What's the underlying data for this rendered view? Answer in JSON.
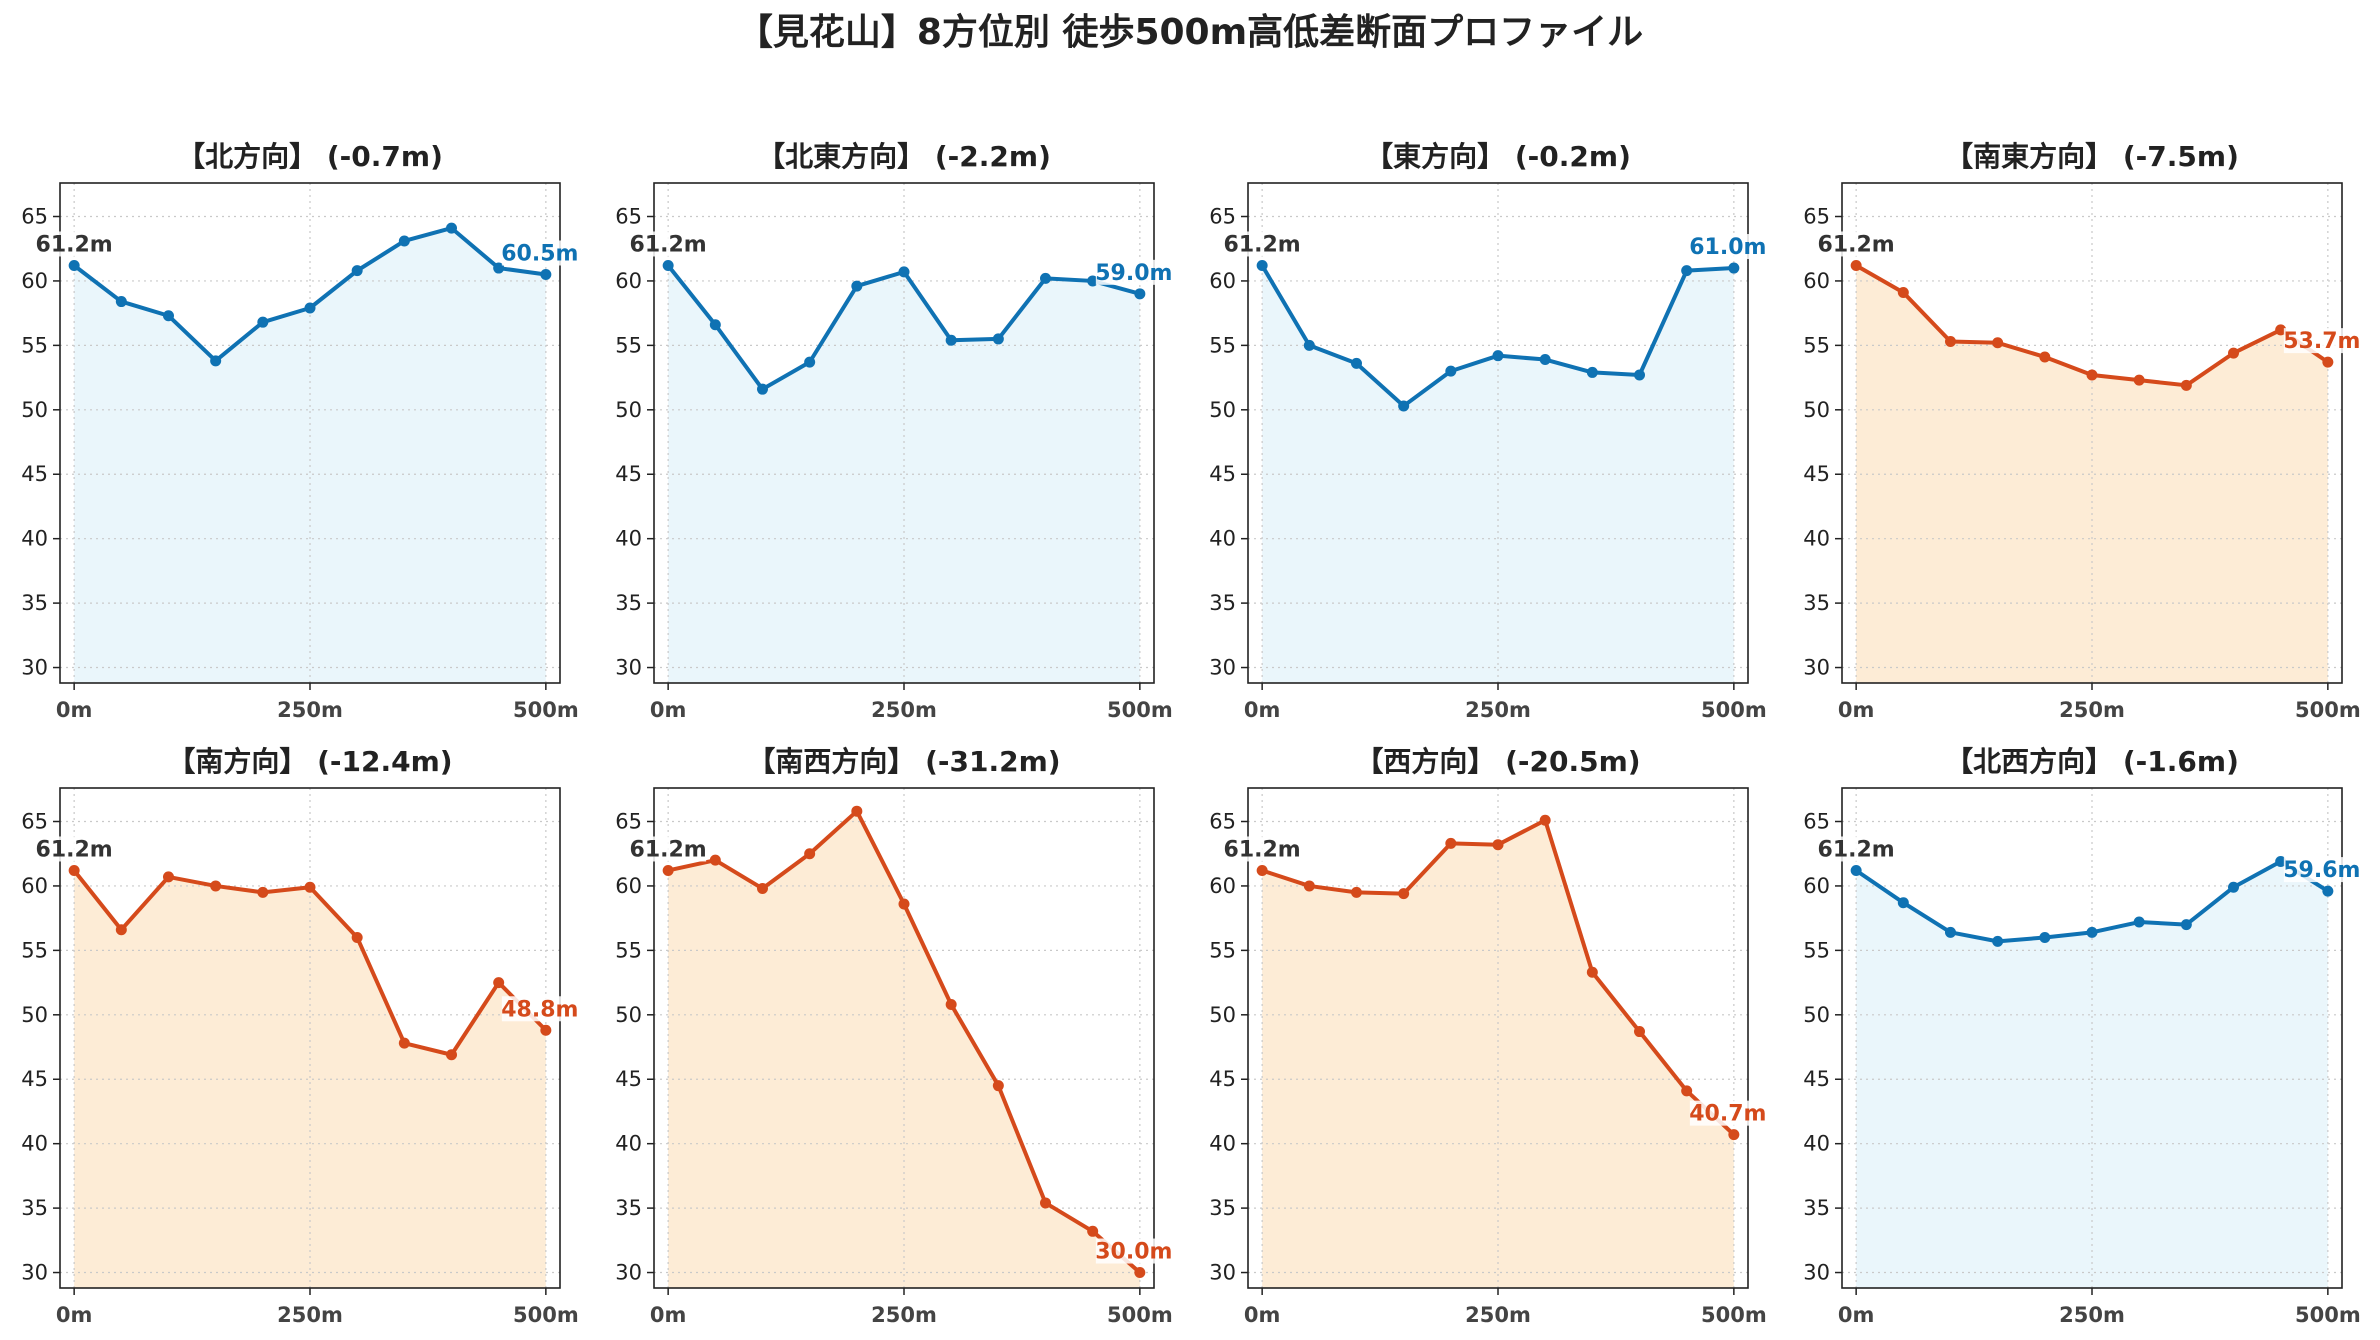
{
  "title": "【見花山】8方位別 徒歩500m高低差断面プロファイル",
  "colors": {
    "up_line": "#0f72b3",
    "up_fill": "#eaf6fb",
    "down_line": "#d54a1b",
    "down_fill": "#fdecd6",
    "grid": "#c9c9c9",
    "start_label": "#333333"
  },
  "chart_data": [
    {
      "type": "area",
      "title": "【北方向】 (-0.7m)",
      "x": [
        0,
        50,
        100,
        150,
        200,
        250,
        300,
        350,
        400,
        450,
        500
      ],
      "x_tick_labels": [
        "0m",
        "250m",
        "500m"
      ],
      "x_ticks": [
        0,
        250,
        500
      ],
      "xlim": [
        -15,
        515
      ],
      "y": [
        61.2,
        58.4,
        57.3,
        53.8,
        56.8,
        57.9,
        60.8,
        63.1,
        64.1,
        61.0,
        60.5
      ],
      "ylim": [
        28.8,
        67.6
      ],
      "y_ticks": [
        30,
        35,
        40,
        45,
        50,
        55,
        60,
        65
      ],
      "start_label": "61.2m",
      "end_label": "60.5m",
      "trend": "up",
      "grid": true
    },
    {
      "type": "area",
      "title": "【北東方向】 (-2.2m)",
      "x": [
        0,
        50,
        100,
        150,
        200,
        250,
        300,
        350,
        400,
        450,
        500
      ],
      "x_tick_labels": [
        "0m",
        "250m",
        "500m"
      ],
      "x_ticks": [
        0,
        250,
        500
      ],
      "xlim": [
        -15,
        515
      ],
      "y": [
        61.2,
        56.6,
        51.6,
        53.7,
        59.6,
        60.7,
        55.4,
        55.5,
        60.2,
        60.0,
        59.0
      ],
      "ylim": [
        28.8,
        67.6
      ],
      "y_ticks": [
        30,
        35,
        40,
        45,
        50,
        55,
        60,
        65
      ],
      "start_label": "61.2m",
      "end_label": "59.0m",
      "trend": "up",
      "grid": true
    },
    {
      "type": "area",
      "title": "【東方向】 (-0.2m)",
      "x": [
        0,
        50,
        100,
        150,
        200,
        250,
        300,
        350,
        400,
        450,
        500
      ],
      "x_tick_labels": [
        "0m",
        "250m",
        "500m"
      ],
      "x_ticks": [
        0,
        250,
        500
      ],
      "xlim": [
        -15,
        515
      ],
      "y": [
        61.2,
        55.0,
        53.6,
        50.3,
        53.0,
        54.2,
        53.9,
        52.9,
        52.7,
        60.8,
        61.0
      ],
      "ylim": [
        28.8,
        67.6
      ],
      "y_ticks": [
        30,
        35,
        40,
        45,
        50,
        55,
        60,
        65
      ],
      "start_label": "61.2m",
      "end_label": "61.0m",
      "trend": "up",
      "grid": true
    },
    {
      "type": "area",
      "title": "【南東方向】 (-7.5m)",
      "x": [
        0,
        50,
        100,
        150,
        200,
        250,
        300,
        350,
        400,
        450,
        500
      ],
      "x_tick_labels": [
        "0m",
        "250m",
        "500m"
      ],
      "x_ticks": [
        0,
        250,
        500
      ],
      "xlim": [
        -15,
        515
      ],
      "y": [
        61.2,
        59.1,
        55.3,
        55.2,
        54.1,
        52.7,
        52.3,
        51.9,
        54.4,
        56.2,
        53.7
      ],
      "ylim": [
        28.8,
        67.6
      ],
      "y_ticks": [
        30,
        35,
        40,
        45,
        50,
        55,
        60,
        65
      ],
      "start_label": "61.2m",
      "end_label": "53.7m",
      "trend": "down",
      "grid": true
    },
    {
      "type": "area",
      "title": "【南方向】 (-12.4m)",
      "x": [
        0,
        50,
        100,
        150,
        200,
        250,
        300,
        350,
        400,
        450,
        500
      ],
      "x_tick_labels": [
        "0m",
        "250m",
        "500m"
      ],
      "x_ticks": [
        0,
        250,
        500
      ],
      "xlim": [
        -15,
        515
      ],
      "y": [
        61.2,
        56.6,
        60.7,
        60.0,
        59.5,
        59.9,
        56.0,
        47.8,
        46.9,
        52.5,
        48.8
      ],
      "ylim": [
        28.8,
        67.6
      ],
      "y_ticks": [
        30,
        35,
        40,
        45,
        50,
        55,
        60,
        65
      ],
      "start_label": "61.2m",
      "end_label": "48.8m",
      "trend": "down",
      "grid": true
    },
    {
      "type": "area",
      "title": "【南西方向】 (-31.2m)",
      "x": [
        0,
        50,
        100,
        150,
        200,
        250,
        300,
        350,
        400,
        450,
        500
      ],
      "x_tick_labels": [
        "0m",
        "250m",
        "500m"
      ],
      "x_ticks": [
        0,
        250,
        500
      ],
      "xlim": [
        -15,
        515
      ],
      "y": [
        61.2,
        62.0,
        59.8,
        62.5,
        65.8,
        58.6,
        50.8,
        44.5,
        35.4,
        33.2,
        30.0
      ],
      "ylim": [
        28.8,
        67.6
      ],
      "y_ticks": [
        30,
        35,
        40,
        45,
        50,
        55,
        60,
        65
      ],
      "start_label": "61.2m",
      "end_label": "30.0m",
      "trend": "down",
      "grid": true
    },
    {
      "type": "area",
      "title": "【西方向】 (-20.5m)",
      "x": [
        0,
        50,
        100,
        150,
        200,
        250,
        300,
        350,
        400,
        450,
        500
      ],
      "x_tick_labels": [
        "0m",
        "250m",
        "500m"
      ],
      "x_ticks": [
        0,
        250,
        500
      ],
      "xlim": [
        -15,
        515
      ],
      "y": [
        61.2,
        60.0,
        59.5,
        59.4,
        63.3,
        63.2,
        65.1,
        53.3,
        48.7,
        44.1,
        40.7
      ],
      "ylim": [
        28.8,
        67.6
      ],
      "y_ticks": [
        30,
        35,
        40,
        45,
        50,
        55,
        60,
        65
      ],
      "start_label": "61.2m",
      "end_label": "40.7m",
      "trend": "down",
      "grid": true
    },
    {
      "type": "area",
      "title": "【北西方向】 (-1.6m)",
      "x": [
        0,
        50,
        100,
        150,
        200,
        250,
        300,
        350,
        400,
        450,
        500
      ],
      "x_tick_labels": [
        "0m",
        "250m",
        "500m"
      ],
      "x_ticks": [
        0,
        250,
        500
      ],
      "xlim": [
        -15,
        515
      ],
      "y": [
        61.2,
        58.7,
        56.4,
        55.7,
        56.0,
        56.4,
        57.2,
        57.0,
        59.9,
        61.9,
        59.6
      ],
      "ylim": [
        28.8,
        67.6
      ],
      "y_ticks": [
        30,
        35,
        40,
        45,
        50,
        55,
        60,
        65
      ],
      "start_label": "61.2m",
      "end_label": "59.6m",
      "trend": "up",
      "grid": true
    }
  ]
}
